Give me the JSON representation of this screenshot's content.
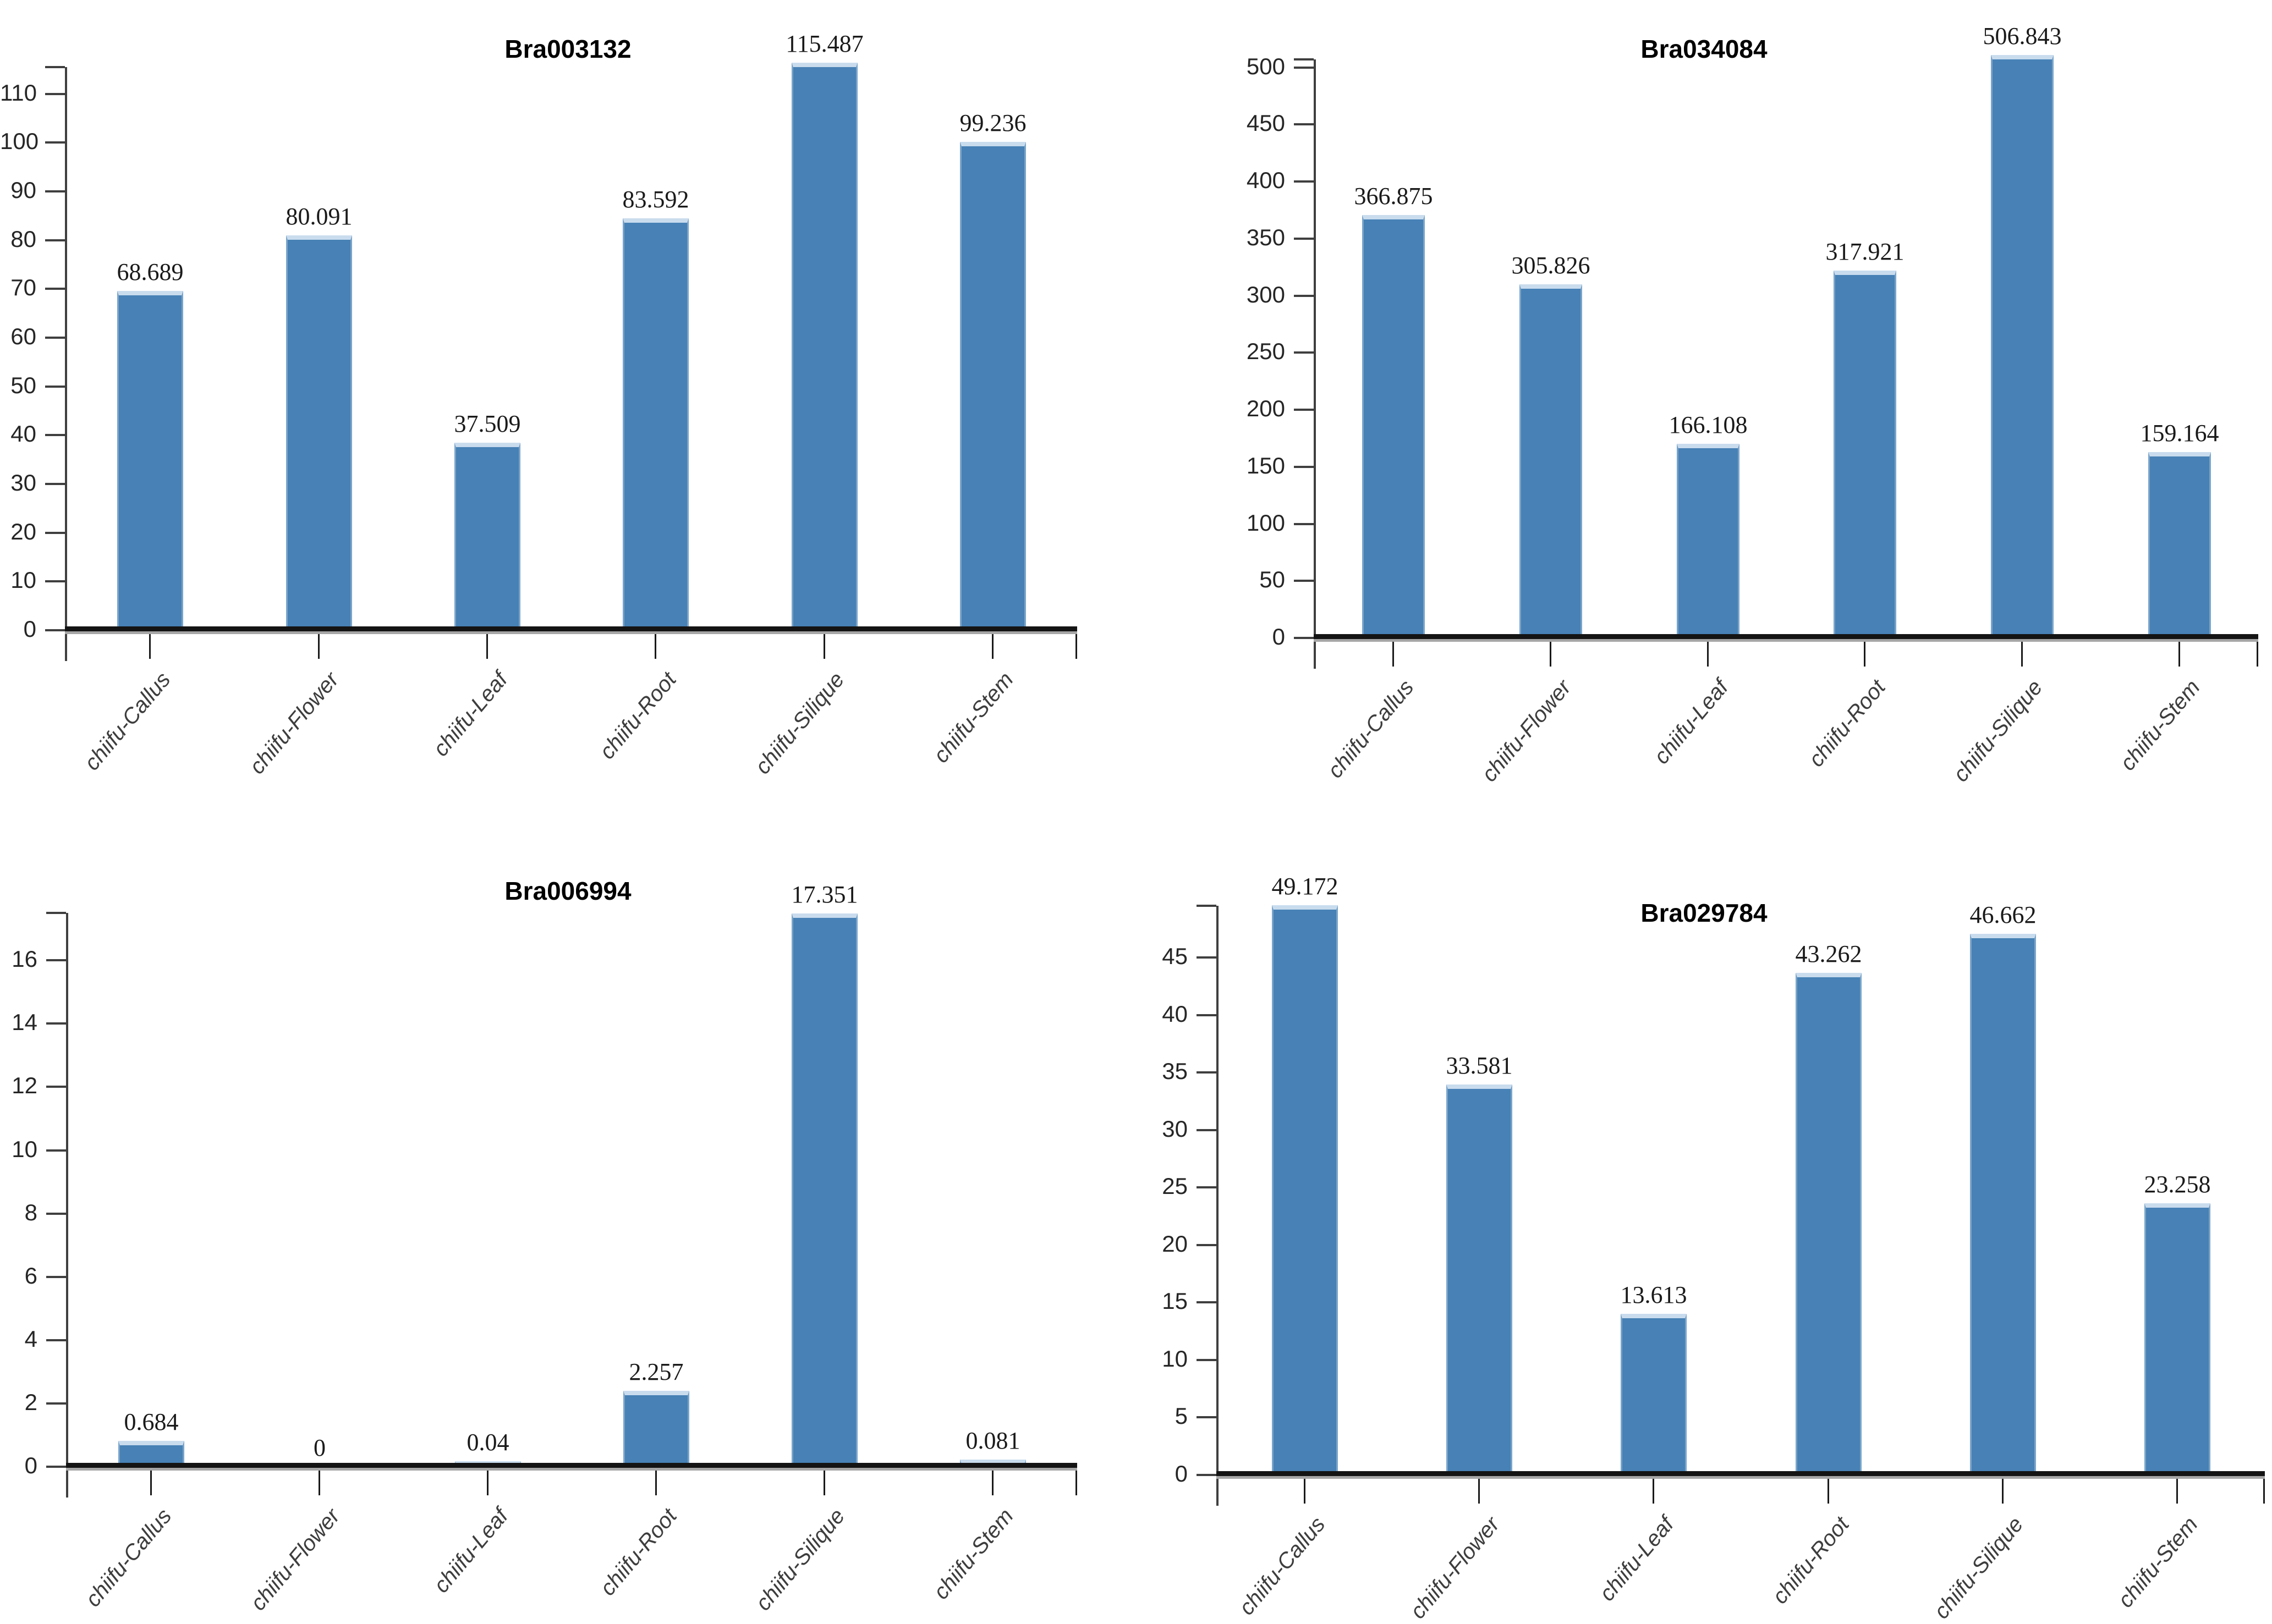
{
  "page": {
    "background": "#ffffff",
    "grid": "2x2 panel of bar charts"
  },
  "colors": {
    "bar_fill": "#4781b5",
    "bar_top_cap": "#c9dcee",
    "bar_side_highlight": "rgba(255,255,255,0.28)",
    "y_axis": "#3f3f3f",
    "baseline": "#141414",
    "baseline_shadow": "#a6a6a6",
    "x_tick": "#1a1a1a",
    "title": "#000000",
    "value_label": "#1a1a1a",
    "ytick_label": "#262626",
    "category_label": "#3d3d3d"
  },
  "categories": [
    "chiifu-Callus",
    "chiifu-Flower",
    "chiifu-Leaf",
    "chiifu-Root",
    "chiifu-Silique",
    "chiifu-Stem"
  ],
  "chart_data": [
    {
      "type": "bar",
      "title": "Bra003132",
      "position": "top-left",
      "categories": [
        "chiifu-Callus",
        "chiifu-Flower",
        "chiifu-Leaf",
        "chiifu-Root",
        "chiifu-Silique",
        "chiifu-Stem"
      ],
      "values": [
        68.689,
        80.091,
        37.509,
        83.592,
        115.487,
        99.236
      ],
      "value_labels": [
        "68.689",
        "80.091",
        "37.509",
        "83.592",
        "115.487",
        "99.236"
      ],
      "yticks": [
        0,
        10,
        20,
        30,
        40,
        50,
        60,
        70,
        80,
        90,
        100,
        110
      ],
      "ylim": [
        0,
        115.5
      ],
      "xlabel": "",
      "ylabel": "",
      "grid": false,
      "legend": false
    },
    {
      "type": "bar",
      "title": "Bra034084",
      "position": "top-right",
      "categories": [
        "chiifu-Callus",
        "chiifu-Flower",
        "chiifu-Leaf",
        "chiifu-Root",
        "chiifu-Silique",
        "chiifu-Stem"
      ],
      "values": [
        366.875,
        305.826,
        166.108,
        317.921,
        506.843,
        159.164
      ],
      "value_labels": [
        "366.875",
        "305.826",
        "166.108",
        "317.921",
        "506.843",
        "159.164"
      ],
      "yticks": [
        0,
        50,
        100,
        150,
        200,
        250,
        300,
        350,
        400,
        450,
        500
      ],
      "ylim": [
        0,
        507
      ],
      "xlabel": "",
      "ylabel": "",
      "grid": false,
      "legend": false
    },
    {
      "type": "bar",
      "title": "Bra006994",
      "position": "bottom-left",
      "categories": [
        "chiifu-Callus",
        "chiifu-Flower",
        "chiifu-Leaf",
        "chiifu-Root",
        "chiifu-Silique",
        "chiifu-Stem"
      ],
      "values": [
        0.684,
        0,
        0.04,
        2.257,
        17.351,
        0.081
      ],
      "value_labels": [
        "0.684",
        "0",
        "0.04",
        "2.257",
        "17.351",
        "0.081"
      ],
      "yticks": [
        0,
        2,
        4,
        6,
        8,
        10,
        12,
        14,
        16
      ],
      "ylim": [
        0,
        17.5
      ],
      "xlabel": "",
      "ylabel": "",
      "grid": false,
      "legend": false
    },
    {
      "type": "bar",
      "title": "Bra029784",
      "position": "bottom-right",
      "categories": [
        "chiifu-Callus",
        "chiifu-Flower",
        "chiifu-Leaf",
        "chiifu-Root",
        "chiifu-Silique",
        "chiifu-Stem"
      ],
      "values": [
        49.172,
        33.581,
        13.613,
        43.262,
        46.662,
        23.258
      ],
      "value_labels": [
        "49.172",
        "33.581",
        "13.613",
        "43.262",
        "46.662",
        "23.258"
      ],
      "yticks": [
        0,
        5,
        10,
        15,
        20,
        25,
        30,
        35,
        40,
        45
      ],
      "ylim": [
        0,
        49.5
      ],
      "xlabel": "",
      "ylabel": "",
      "grid": false,
      "legend": false
    }
  ]
}
